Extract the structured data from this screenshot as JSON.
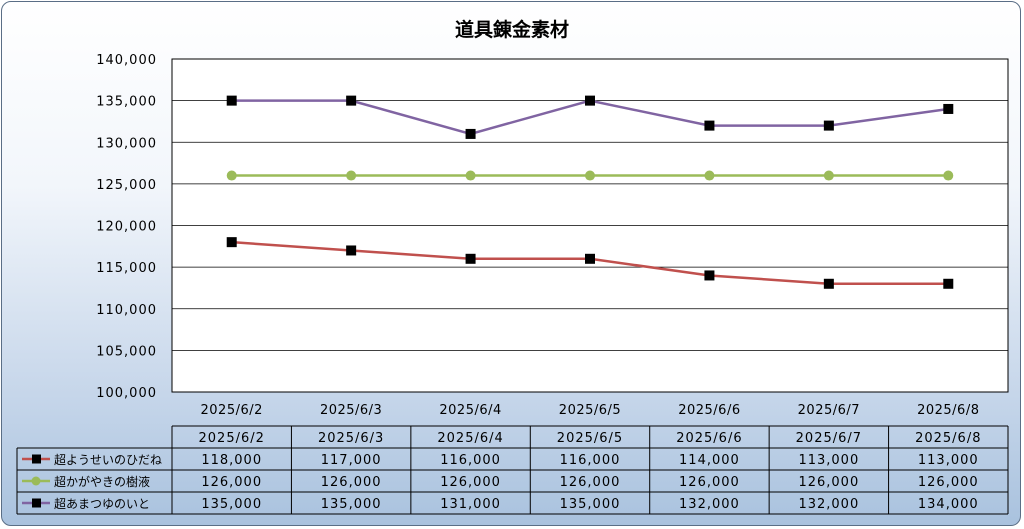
{
  "chart_data": {
    "type": "line",
    "title": "道具錬金素材",
    "categories": [
      "2025/6/2",
      "2025/6/3",
      "2025/6/4",
      "2025/6/5",
      "2025/6/6",
      "2025/6/7",
      "2025/6/8"
    ],
    "ylim": [
      100000,
      140000
    ],
    "ytick_step": 5000,
    "yticks": [
      "100,000",
      "105,000",
      "110,000",
      "115,000",
      "120,000",
      "125,000",
      "130,000",
      "135,000",
      "140,000"
    ],
    "grid": true,
    "legend": "data-table",
    "series": [
      {
        "name": "超ようせいのひだね",
        "color": "#c0504d",
        "marker": "square",
        "values": [
          118000,
          117000,
          116000,
          116000,
          114000,
          113000,
          113000
        ],
        "labels": [
          "118,000",
          "117,000",
          "116,000",
          "116,000",
          "114,000",
          "113,000",
          "113,000"
        ]
      },
      {
        "name": "超かがやきの樹液",
        "color": "#9bbb59",
        "marker": "circle",
        "values": [
          126000,
          126000,
          126000,
          126000,
          126000,
          126000,
          126000
        ],
        "labels": [
          "126,000",
          "126,000",
          "126,000",
          "126,000",
          "126,000",
          "126,000",
          "126,000"
        ]
      },
      {
        "name": "超あまつゆのいと",
        "color": "#8064a2",
        "marker": "square",
        "values": [
          135000,
          135000,
          131000,
          135000,
          132000,
          132000,
          134000
        ],
        "labels": [
          "135,000",
          "135,000",
          "131,000",
          "135,000",
          "132,000",
          "132,000",
          "134,000"
        ]
      }
    ]
  }
}
